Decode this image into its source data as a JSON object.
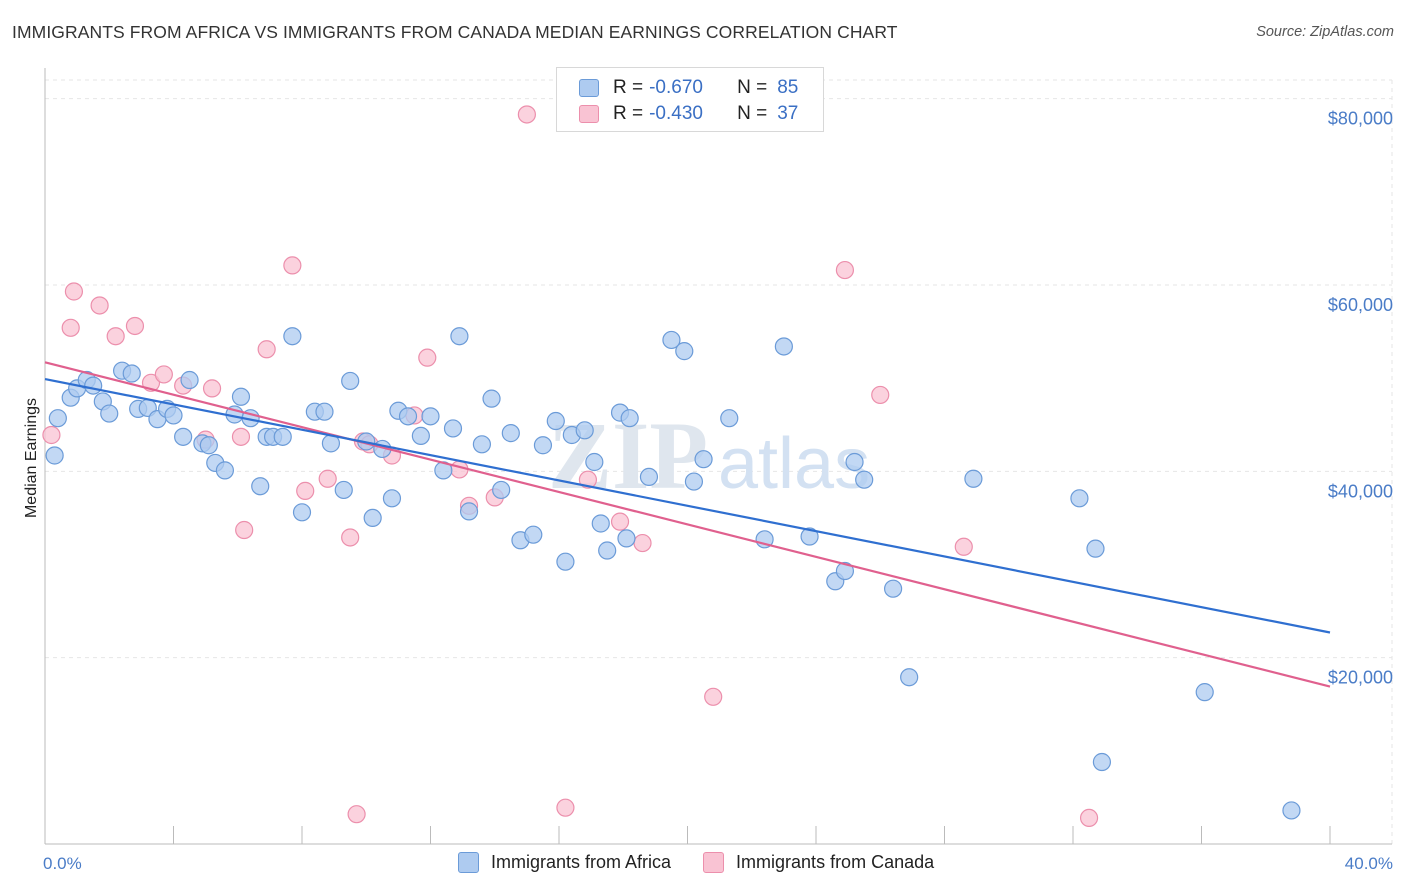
{
  "title": "IMMIGRANTS FROM AFRICA VS IMMIGRANTS FROM CANADA MEDIAN EARNINGS CORRELATION CHART",
  "source": "Source: ZipAtlas.com",
  "watermark": {
    "zip": "ZIP",
    "atlas": "atlas"
  },
  "legend": {
    "africa": {
      "r_label": "R =",
      "r_value": "-0.670",
      "n_label": "N =",
      "n_value": "85"
    },
    "canada": {
      "r_label": "R =",
      "r_value": "-0.430",
      "n_label": "N =",
      "n_value": "37"
    }
  },
  "colors": {
    "africa_fill": "#aecbf0",
    "africa_stroke": "#6b9bd8",
    "africa_line": "#2f6fd0",
    "canada_fill": "#f9c3d3",
    "canada_stroke": "#ec8fac",
    "canada_line": "#e0608e",
    "axis_text": "#4a7cc7",
    "grid": "#e6e6e6"
  },
  "chart_data": {
    "type": "scatter",
    "title": "IMMIGRANTS FROM AFRICA VS IMMIGRANTS FROM CANADA MEDIAN EARNINGS CORRELATION CHART",
    "xlabel": "",
    "ylabel": "Median Earnings",
    "xlim": [
      0,
      40
    ],
    "ylim": [
      0,
      82000
    ],
    "x_tick_labels": [
      "0.0%",
      "40.0%"
    ],
    "y_ticks": [
      20000,
      40000,
      60000,
      80000
    ],
    "y_tick_labels": [
      "$20,000",
      "$40,000",
      "$60,000",
      "$80,000"
    ],
    "grid": true,
    "legend_position": "bottom",
    "series": [
      {
        "name": "Immigrants from Africa",
        "points": [
          [
            0.3,
            41700
          ],
          [
            0.4,
            45700
          ],
          [
            0.8,
            47900
          ],
          [
            1.0,
            48900
          ],
          [
            1.3,
            49800
          ],
          [
            1.5,
            49200
          ],
          [
            1.8,
            47500
          ],
          [
            2.0,
            46200
          ],
          [
            2.4,
            50800
          ],
          [
            2.7,
            50500
          ],
          [
            2.9,
            46700
          ],
          [
            3.2,
            46800
          ],
          [
            3.5,
            45600
          ],
          [
            3.8,
            46700
          ],
          [
            4.0,
            46000
          ],
          [
            4.3,
            43700
          ],
          [
            4.5,
            49800
          ],
          [
            4.9,
            43000
          ],
          [
            5.1,
            42800
          ],
          [
            5.3,
            40900
          ],
          [
            5.6,
            40100
          ],
          [
            5.9,
            46100
          ],
          [
            6.1,
            48000
          ],
          [
            6.4,
            45700
          ],
          [
            6.7,
            38400
          ],
          [
            6.9,
            43700
          ],
          [
            7.1,
            43700
          ],
          [
            7.4,
            43700
          ],
          [
            7.7,
            54500
          ],
          [
            8.0,
            35600
          ],
          [
            8.4,
            46400
          ],
          [
            8.7,
            46400
          ],
          [
            8.9,
            43000
          ],
          [
            9.3,
            38000
          ],
          [
            9.5,
            49700
          ],
          [
            10.0,
            43200
          ],
          [
            10.2,
            35000
          ],
          [
            10.5,
            42400
          ],
          [
            10.8,
            37100
          ],
          [
            11.0,
            46500
          ],
          [
            11.3,
            45900
          ],
          [
            11.7,
            43800
          ],
          [
            12.0,
            45900
          ],
          [
            12.4,
            40100
          ],
          [
            12.7,
            44600
          ],
          [
            12.9,
            54500
          ],
          [
            13.2,
            35700
          ],
          [
            13.6,
            42900
          ],
          [
            13.9,
            47800
          ],
          [
            14.2,
            38000
          ],
          [
            14.5,
            44100
          ],
          [
            14.8,
            32600
          ],
          [
            15.2,
            33200
          ],
          [
            15.5,
            42800
          ],
          [
            15.9,
            45400
          ],
          [
            16.2,
            30300
          ],
          [
            16.4,
            43900
          ],
          [
            16.8,
            44400
          ],
          [
            17.1,
            41000
          ],
          [
            17.3,
            34400
          ],
          [
            17.5,
            31500
          ],
          [
            17.9,
            46300
          ],
          [
            18.2,
            45700
          ],
          [
            18.1,
            32800
          ],
          [
            18.8,
            39400
          ],
          [
            19.5,
            54100
          ],
          [
            19.9,
            52900
          ],
          [
            20.2,
            38900
          ],
          [
            20.5,
            41300
          ],
          [
            21.3,
            45700
          ],
          [
            22.4,
            32700
          ],
          [
            23.0,
            53400
          ],
          [
            23.8,
            33000
          ],
          [
            24.6,
            28200
          ],
          [
            24.9,
            29300
          ],
          [
            25.2,
            41000
          ],
          [
            25.5,
            39100
          ],
          [
            26.4,
            27400
          ],
          [
            26.9,
            17900
          ],
          [
            28.9,
            39200
          ],
          [
            32.2,
            37100
          ],
          [
            32.7,
            31700
          ],
          [
            32.9,
            8800
          ],
          [
            36.1,
            16300
          ],
          [
            38.8,
            3600
          ]
        ],
        "trend": {
          "x": [
            0,
            40
          ],
          "y": [
            49900,
            22700
          ]
        }
      },
      {
        "name": "Immigrants from Canada",
        "points": [
          [
            0.2,
            43900
          ],
          [
            0.9,
            59300
          ],
          [
            0.8,
            55400
          ],
          [
            1.7,
            57800
          ],
          [
            2.2,
            54500
          ],
          [
            2.8,
            55600
          ],
          [
            3.3,
            49500
          ],
          [
            3.7,
            50400
          ],
          [
            4.3,
            49200
          ],
          [
            5.0,
            43400
          ],
          [
            5.2,
            48900
          ],
          [
            6.2,
            33700
          ],
          [
            6.1,
            43700
          ],
          [
            6.9,
            53100
          ],
          [
            7.7,
            62100
          ],
          [
            8.1,
            37900
          ],
          [
            8.8,
            39200
          ],
          [
            9.5,
            32900
          ],
          [
            9.7,
            3200
          ],
          [
            9.9,
            43200
          ],
          [
            10.1,
            42900
          ],
          [
            10.8,
            41700
          ],
          [
            11.5,
            46000
          ],
          [
            11.9,
            52200
          ],
          [
            12.9,
            40200
          ],
          [
            13.2,
            36300
          ],
          [
            14.0,
            37200
          ],
          [
            15.0,
            78300
          ],
          [
            16.2,
            3900
          ],
          [
            16.9,
            39100
          ],
          [
            17.9,
            34600
          ],
          [
            18.6,
            32300
          ],
          [
            20.8,
            15800
          ],
          [
            24.9,
            61600
          ],
          [
            26.0,
            48200
          ],
          [
            28.6,
            31900
          ],
          [
            32.5,
            2800
          ]
        ],
        "trend": {
          "x": [
            0,
            40
          ],
          "y": [
            51700,
            16900
          ]
        }
      }
    ]
  }
}
